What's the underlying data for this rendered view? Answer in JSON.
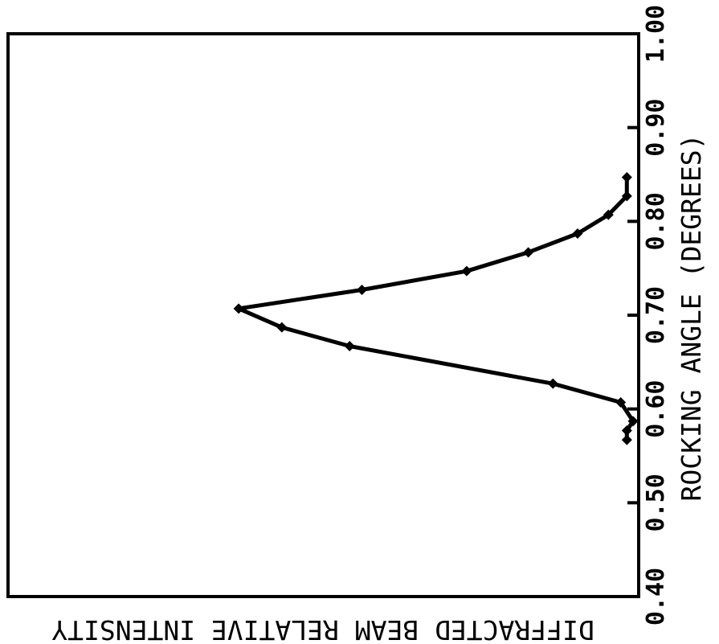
{
  "chart_data": {
    "type": "line",
    "xlabel": "ROCKING ANGLE (DEGREES)",
    "ylabel": "DIFFRACTED BEAM RELATIVE INTENSITY",
    "xlim": [
      0.4,
      1.0
    ],
    "ylim": [
      0,
      1
    ],
    "x_ticks": [
      0.4,
      0.5,
      0.6,
      0.7,
      0.8,
      0.9,
      1.0
    ],
    "x_tick_labels": [
      "0.40",
      "0.50",
      "0.60",
      "0.70",
      "0.80",
      "0.90",
      "1.00"
    ],
    "orientation": "rotated 90 degrees clockwise (angle axis runs bottom-to-top, intensity axis runs right-to-left)",
    "grid": false,
    "series": [
      {
        "marker": "diamond",
        "x": [
          0.567,
          0.577,
          0.587,
          0.607,
          0.627,
          0.667,
          0.687,
          0.707,
          0.727,
          0.747,
          0.767,
          0.787,
          0.807,
          0.827,
          0.847
        ],
        "y": [
          0.01,
          0.01,
          0.0,
          0.02,
          0.13,
          0.46,
          0.57,
          0.64,
          0.44,
          0.27,
          0.17,
          0.09,
          0.04,
          0.01,
          0.01
        ]
      }
    ]
  }
}
